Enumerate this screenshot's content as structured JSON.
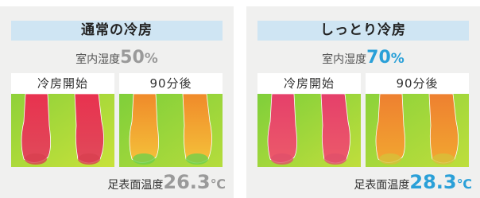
{
  "panels": [
    {
      "title": "通常の冷房",
      "humidity_label": "室内湿度",
      "humidity_value": "50",
      "humidity_unit": "%",
      "images": [
        {
          "label": "冷房開始"
        },
        {
          "label": "90分後"
        }
      ],
      "temp_label": "足表面温度",
      "temp_value": "26.3",
      "temp_unit": "℃"
    },
    {
      "title": "しっとり冷房",
      "humidity_label": "室内湿度",
      "humidity_value": "70",
      "humidity_unit": "%",
      "images": [
        {
          "label": "冷房開始"
        },
        {
          "label": "90分後"
        }
      ],
      "temp_label": "足表面温度",
      "temp_value": "28.3",
      "temp_unit": "℃"
    }
  ]
}
